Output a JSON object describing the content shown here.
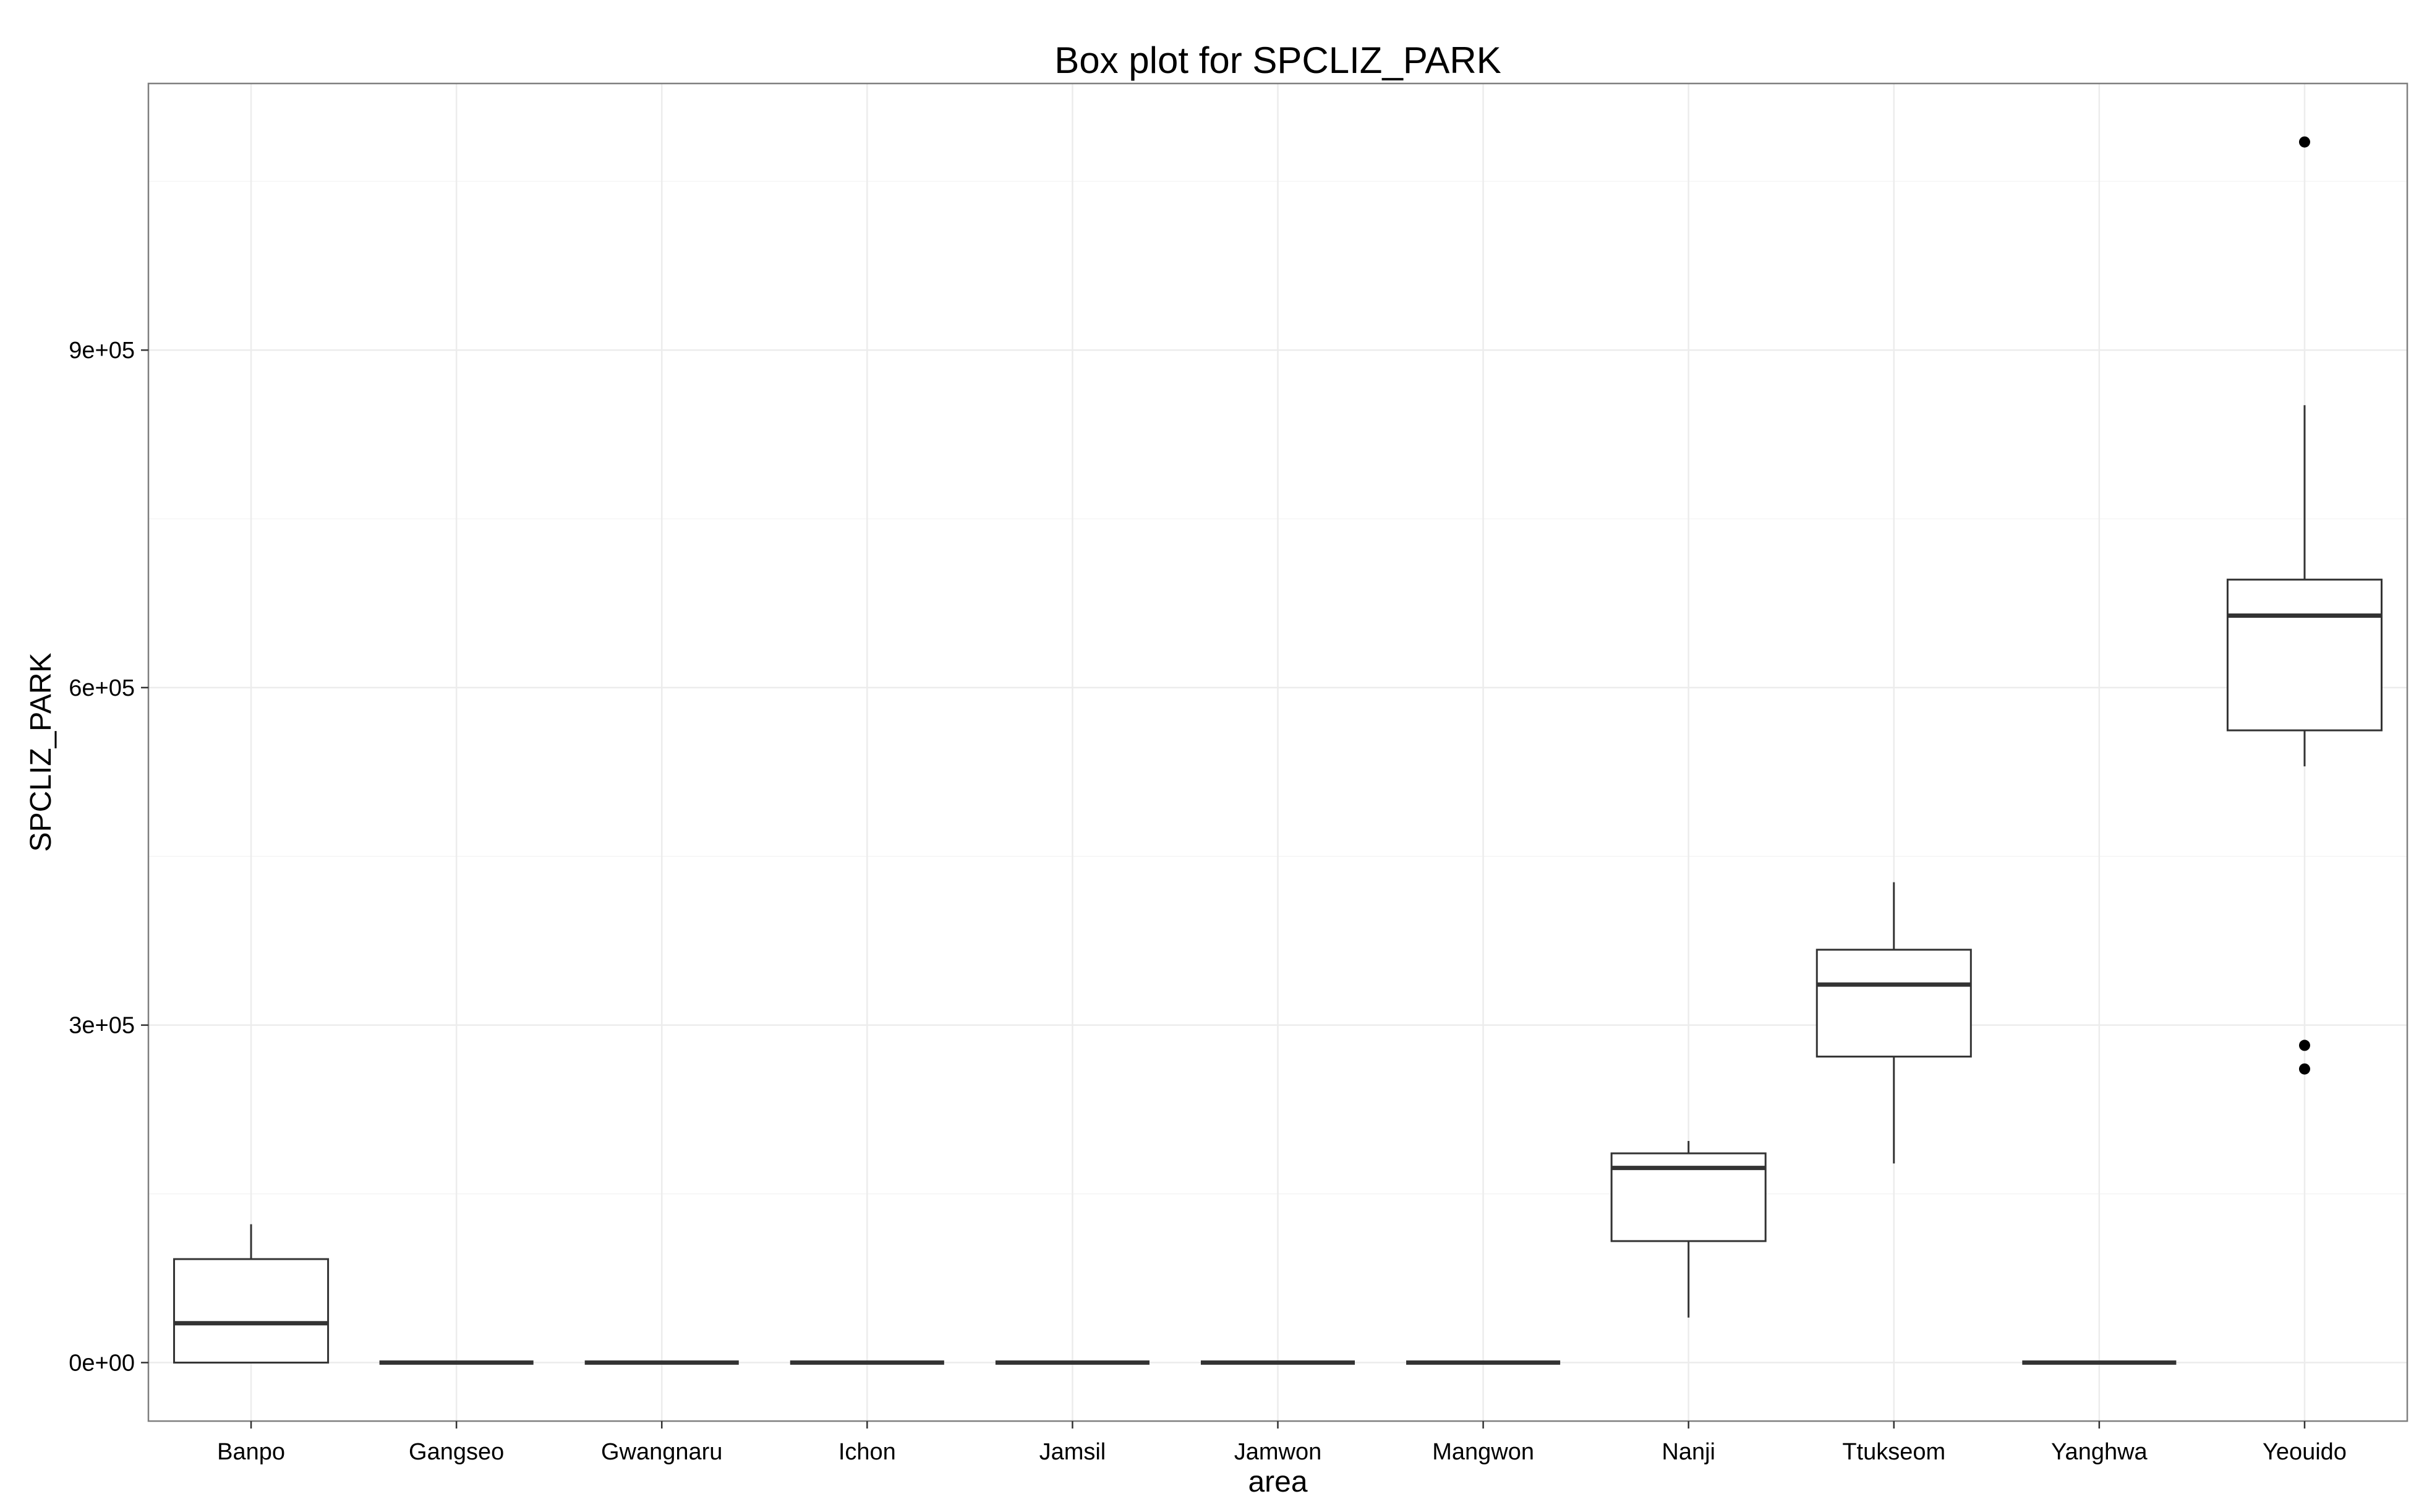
{
  "chart_data": {
    "type": "box",
    "title": "Box plot for SPCLIZ_PARK",
    "xlabel": "area",
    "ylabel": "SPCLIZ_PARK",
    "ylim": [
      -52000,
      1137000
    ],
    "yticks": [
      0,
      300000,
      600000,
      900000
    ],
    "ytick_labels": [
      "0e+00",
      "3e+05",
      "6e+05",
      "9e+05"
    ],
    "y_minor_gridlines": [
      150000,
      450000,
      750000,
      1050000
    ],
    "grid": true,
    "categories": [
      "Banpo",
      "Gangseo",
      "Gwangnaru",
      "Ichon",
      "Jamsil",
      "Jamwon",
      "Mangwon",
      "Nanji",
      "Ttukseom",
      "Yanghwa",
      "Yeouido"
    ],
    "boxes": [
      {
        "category": "Banpo",
        "min": 0,
        "q1": 0,
        "median": 35000,
        "q3": 92000,
        "max": 123000,
        "outliers": []
      },
      {
        "category": "Gangseo",
        "min": 0,
        "q1": 0,
        "median": 0,
        "q3": 0,
        "max": 0,
        "outliers": []
      },
      {
        "category": "Gwangnaru",
        "min": 0,
        "q1": 0,
        "median": 0,
        "q3": 0,
        "max": 0,
        "outliers": []
      },
      {
        "category": "Ichon",
        "min": 0,
        "q1": 0,
        "median": 0,
        "q3": 0,
        "max": 0,
        "outliers": []
      },
      {
        "category": "Jamsil",
        "min": 0,
        "q1": 0,
        "median": 0,
        "q3": 0,
        "max": 0,
        "outliers": []
      },
      {
        "category": "Jamwon",
        "min": 0,
        "q1": 0,
        "median": 0,
        "q3": 0,
        "max": 0,
        "outliers": []
      },
      {
        "category": "Mangwon",
        "min": 0,
        "q1": 0,
        "median": 0,
        "q3": 0,
        "max": 0,
        "outliers": []
      },
      {
        "category": "Nanji",
        "min": 40000,
        "q1": 108000,
        "median": 173000,
        "q3": 186000,
        "max": 197000,
        "outliers": []
      },
      {
        "category": "Ttukseom",
        "min": 177000,
        "q1": 272000,
        "median": 336000,
        "q3": 367000,
        "max": 427000,
        "outliers": []
      },
      {
        "category": "Yanghwa",
        "min": 0,
        "q1": 0,
        "median": 0,
        "q3": 0,
        "max": 0,
        "outliers": []
      },
      {
        "category": "Yeouido",
        "min": 530000,
        "q1": 562000,
        "median": 664000,
        "q3": 696000,
        "max": 851000,
        "outliers": [
          1085000,
          282000,
          261000
        ]
      }
    ]
  }
}
